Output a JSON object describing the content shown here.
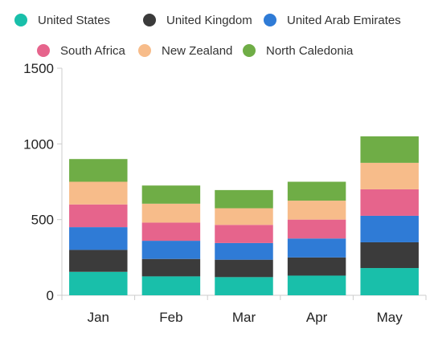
{
  "chart_data": {
    "type": "bar",
    "stacked": true,
    "categories": [
      "Jan",
      "Feb",
      "Mar",
      "Apr",
      "May"
    ],
    "series": [
      {
        "name": "United States",
        "color": "#19bfaa",
        "values": [
          155,
          125,
          120,
          130,
          180
        ]
      },
      {
        "name": "United Kingdom",
        "color": "#3b3b3b",
        "values": [
          145,
          115,
          115,
          120,
          170
        ]
      },
      {
        "name": "United Arab Emirates",
        "color": "#2f7bd6",
        "values": [
          150,
          120,
          110,
          125,
          175
        ]
      },
      {
        "name": "South Africa",
        "color": "#e6648c",
        "values": [
          150,
          120,
          120,
          125,
          175
        ]
      },
      {
        "name": "New Zealand",
        "color": "#f7bc8a",
        "values": [
          150,
          125,
          110,
          125,
          175
        ]
      },
      {
        "name": "North Caledonia",
        "color": "#6fad46",
        "values": [
          150,
          120,
          120,
          125,
          175
        ]
      }
    ],
    "y_ticks": [
      "0",
      "500",
      "1000",
      "1500"
    ],
    "ylim": [
      0,
      1500
    ],
    "grid": false,
    "legend_position": "top"
  }
}
